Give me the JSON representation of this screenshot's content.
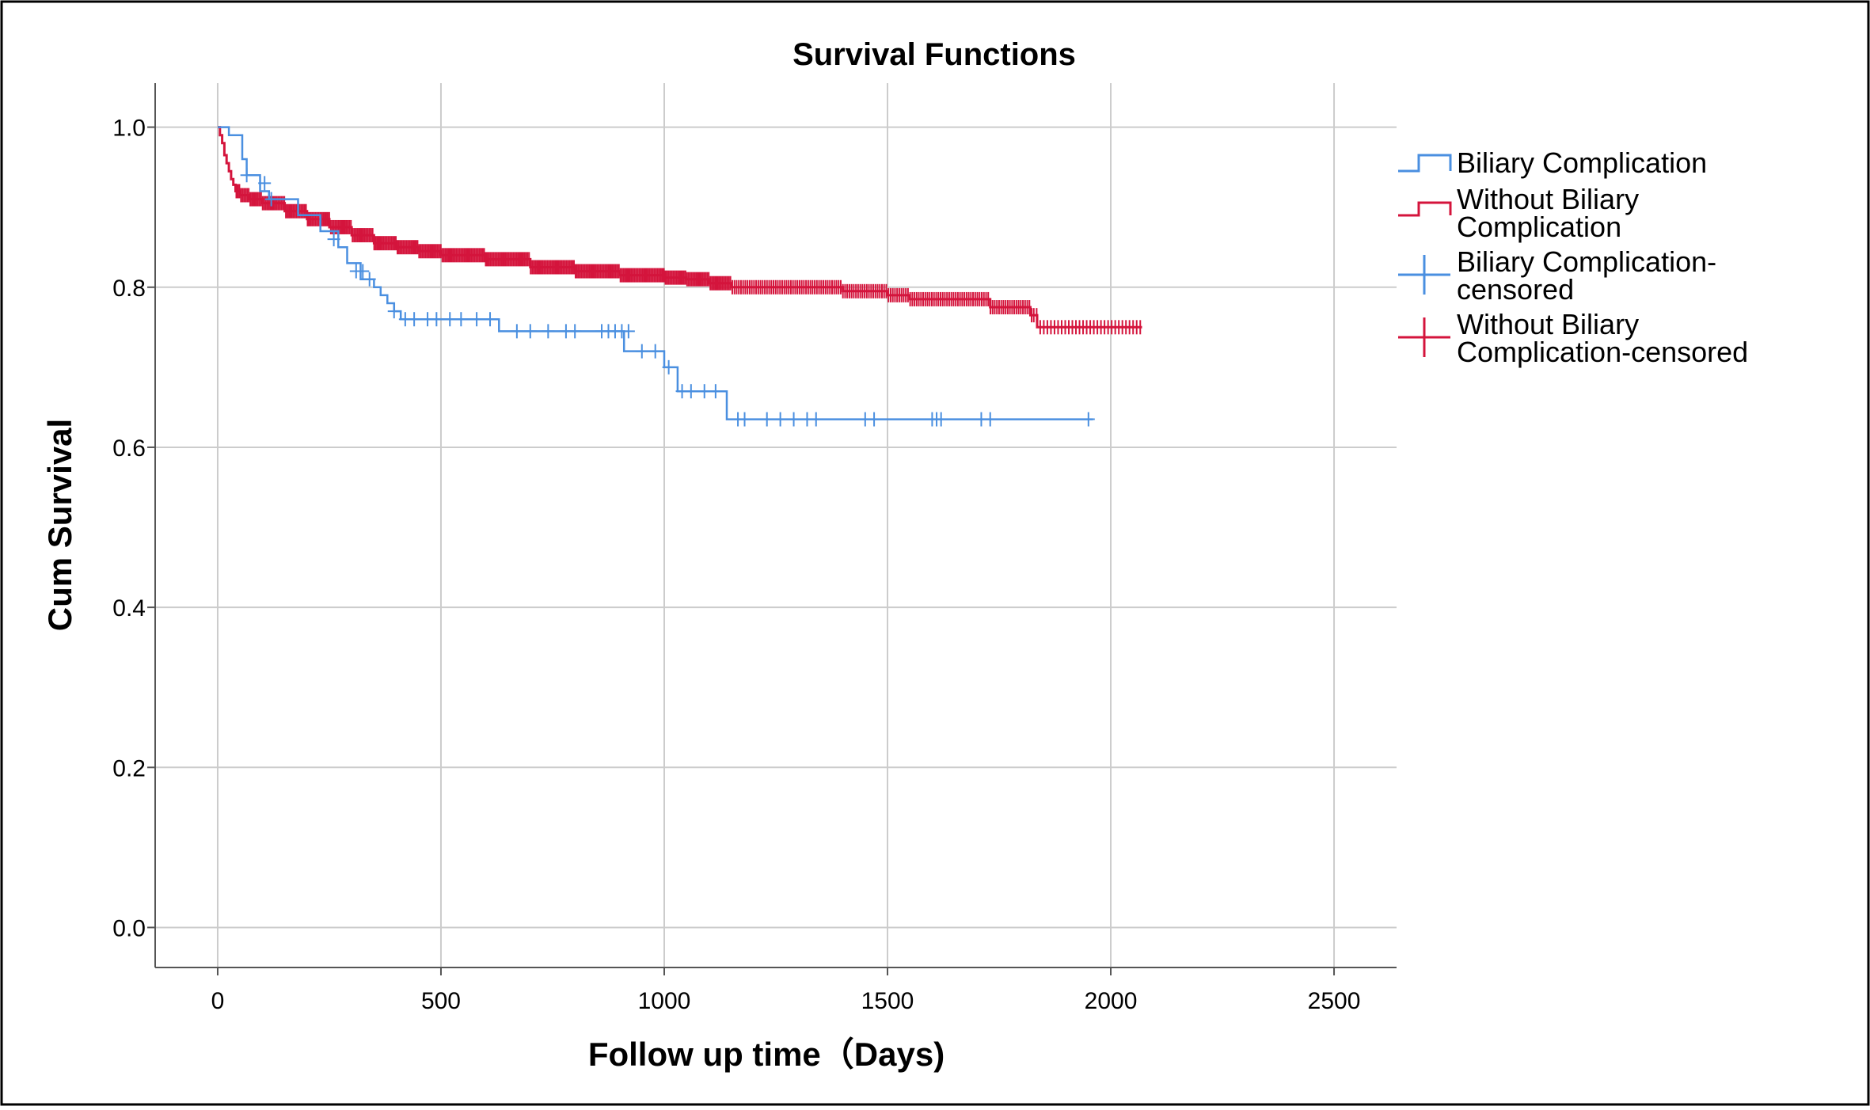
{
  "chart_data": {
    "type": "line",
    "subtype": "kaplan-meier",
    "title": "Survival Functions",
    "xlabel": "Follow up time（Days)",
    "ylabel": "Cum Survival",
    "xlim": [
      -140,
      2640
    ],
    "ylim": [
      -0.05,
      1.055
    ],
    "xticks": [
      0,
      500,
      1000,
      1500,
      2000,
      2500
    ],
    "xtick_labels": [
      "0",
      "500",
      "1000",
      "1500",
      "2000",
      "2500"
    ],
    "yticks": [
      0.0,
      0.2,
      0.4,
      0.6,
      0.8,
      1.0
    ],
    "ytick_labels": [
      "0.0",
      "0.2",
      "0.4",
      "0.6",
      "0.8",
      "1.0"
    ],
    "grid": true,
    "legend_position": "right",
    "legend": [
      {
        "label": "Biliary Complication",
        "kind": "step"
      },
      {
        "label": "Without Biliary Complication",
        "kind": "step"
      },
      {
        "label": "Biliary Complication-censored",
        "kind": "censor"
      },
      {
        "label": "Without Biliary Complication-censored",
        "kind": "censor"
      }
    ],
    "series": [
      {
        "name": "Biliary Complication",
        "color": "#4a8fe0",
        "steps": [
          [
            0,
            1.0
          ],
          [
            25,
            1.0
          ],
          [
            25,
            0.99
          ],
          [
            55,
            0.99
          ],
          [
            55,
            0.96
          ],
          [
            65,
            0.96
          ],
          [
            65,
            0.94
          ],
          [
            95,
            0.94
          ],
          [
            95,
            0.92
          ],
          [
            115,
            0.92
          ],
          [
            115,
            0.91
          ],
          [
            180,
            0.91
          ],
          [
            180,
            0.89
          ],
          [
            230,
            0.89
          ],
          [
            230,
            0.87
          ],
          [
            270,
            0.87
          ],
          [
            270,
            0.85
          ],
          [
            290,
            0.85
          ],
          [
            290,
            0.83
          ],
          [
            320,
            0.83
          ],
          [
            320,
            0.81
          ],
          [
            350,
            0.81
          ],
          [
            350,
            0.8
          ],
          [
            365,
            0.8
          ],
          [
            365,
            0.79
          ],
          [
            380,
            0.79
          ],
          [
            380,
            0.78
          ],
          [
            395,
            0.78
          ],
          [
            395,
            0.77
          ],
          [
            410,
            0.77
          ],
          [
            410,
            0.76
          ],
          [
            630,
            0.76
          ],
          [
            630,
            0.745
          ],
          [
            910,
            0.745
          ],
          [
            910,
            0.72
          ],
          [
            1000,
            0.72
          ],
          [
            1000,
            0.7
          ],
          [
            1030,
            0.7
          ],
          [
            1030,
            0.67
          ],
          [
            1140,
            0.67
          ],
          [
            1140,
            0.635
          ],
          [
            1960,
            0.635
          ]
        ],
        "censored": {
          "x": [
            65,
            105,
            120,
            260,
            310,
            325,
            340,
            395,
            420,
            440,
            470,
            490,
            520,
            545,
            580,
            610,
            670,
            700,
            740,
            780,
            800,
            860,
            875,
            890,
            905,
            920,
            950,
            980,
            1010,
            1040,
            1060,
            1090,
            1115,
            1165,
            1180,
            1230,
            1260,
            1290,
            1320,
            1340,
            1450,
            1470,
            1600,
            1610,
            1620,
            1710,
            1730,
            1950
          ],
          "y": [
            0.94,
            0.93,
            0.91,
            0.86,
            0.82,
            0.82,
            0.81,
            0.77,
            0.76,
            0.76,
            0.76,
            0.76,
            0.76,
            0.76,
            0.76,
            0.76,
            0.745,
            0.745,
            0.745,
            0.745,
            0.745,
            0.745,
            0.745,
            0.745,
            0.745,
            0.745,
            0.72,
            0.72,
            0.7,
            0.67,
            0.67,
            0.67,
            0.67,
            0.635,
            0.635,
            0.635,
            0.635,
            0.635,
            0.635,
            0.635,
            0.635,
            0.635,
            0.635,
            0.635,
            0.635,
            0.635,
            0.635,
            0.635
          ]
        }
      },
      {
        "name": "Without Biliary Complication",
        "color": "#d4143c",
        "steps": [
          [
            0,
            1.0
          ],
          [
            5,
            0.99
          ],
          [
            10,
            0.98
          ],
          [
            15,
            0.965
          ],
          [
            20,
            0.955
          ],
          [
            25,
            0.945
          ],
          [
            30,
            0.935
          ],
          [
            35,
            0.928
          ],
          [
            40,
            0.92
          ],
          [
            50,
            0.915
          ],
          [
            70,
            0.91
          ],
          [
            100,
            0.905
          ],
          [
            150,
            0.895
          ],
          [
            200,
            0.885
          ],
          [
            250,
            0.875
          ],
          [
            300,
            0.865
          ],
          [
            350,
            0.855
          ],
          [
            400,
            0.85
          ],
          [
            450,
            0.845
          ],
          [
            500,
            0.84
          ],
          [
            600,
            0.835
          ],
          [
            700,
            0.825
          ],
          [
            800,
            0.82
          ],
          [
            900,
            0.815
          ],
          [
            1000,
            0.812
          ],
          [
            1050,
            0.81
          ],
          [
            1100,
            0.805
          ],
          [
            1150,
            0.8
          ],
          [
            1350,
            0.8
          ],
          [
            1400,
            0.795
          ],
          [
            1500,
            0.79
          ],
          [
            1550,
            0.785
          ],
          [
            1650,
            0.785
          ],
          [
            1730,
            0.775
          ],
          [
            1820,
            0.765
          ],
          [
            1835,
            0.75
          ],
          [
            2070,
            0.75
          ]
        ],
        "censor_bands": [
          {
            "x_start": 40,
            "x_end": 1150,
            "count": 320
          },
          {
            "x_start": 1150,
            "x_end": 1830,
            "count": 140
          },
          {
            "x_start": 1830,
            "x_end": 2070,
            "count": 30
          }
        ]
      }
    ]
  }
}
